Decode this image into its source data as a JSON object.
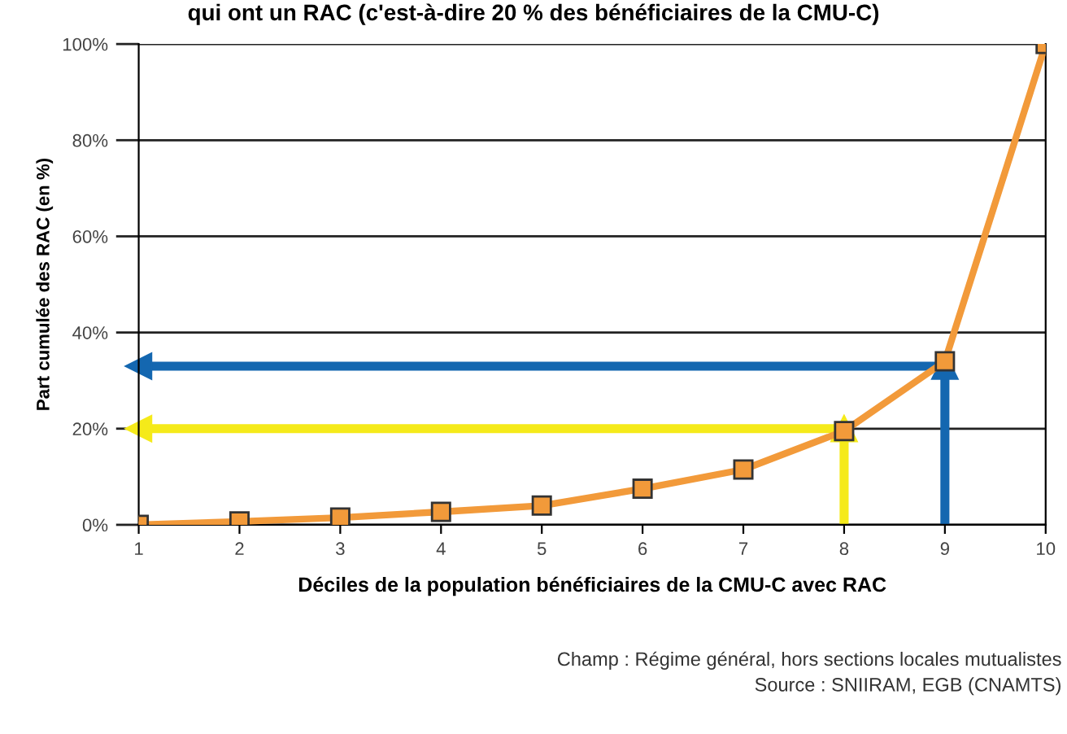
{
  "chart_data": {
    "type": "line",
    "title": "qui ont un RAC (c'est-à-dire 20 % des bénéficiaires de la CMU-C)",
    "xlabel": "Déciles de la population bénéficiaires de la CMU-C avec RAC",
    "ylabel": "Part cumulée des RAC (en %)",
    "x": [
      1,
      2,
      3,
      4,
      5,
      6,
      7,
      8,
      9,
      10
    ],
    "series": [
      {
        "color": "#f29a3a",
        "values": [
          0,
          0.7,
          1.5,
          2.7,
          4,
          7.5,
          11.5,
          19.5,
          34,
          100
        ],
        "marker": "square"
      },
      {
        "color": "#1467b0",
        "x": [
          9,
          9,
          1
        ],
        "values": [
          0,
          33,
          33
        ],
        "marker": "triangle"
      },
      {
        "color": "#f5ea1a",
        "x": [
          8,
          8,
          1
        ],
        "values": [
          0,
          20,
          20
        ],
        "marker": "triangle"
      }
    ],
    "xlim": [
      1,
      10
    ],
    "xticks": [
      1,
      2,
      3,
      4,
      5,
      6,
      7,
      8,
      9,
      10
    ],
    "ylim": [
      0,
      100
    ],
    "yticks": [
      {
        "value": 0,
        "label": "0%"
      },
      {
        "value": 20,
        "label": "20%"
      },
      {
        "value": 40,
        "label": "40%"
      },
      {
        "value": 60,
        "label": "60%"
      },
      {
        "value": 80,
        "label": "80%"
      },
      {
        "value": 100,
        "label": "100%"
      }
    ],
    "grid": "y",
    "legend": false,
    "annotations": [
      "Champ : Régime général, hors sections locales mutualistes",
      "Source : SNIIRAM, EGB (CNAMTS)"
    ]
  }
}
